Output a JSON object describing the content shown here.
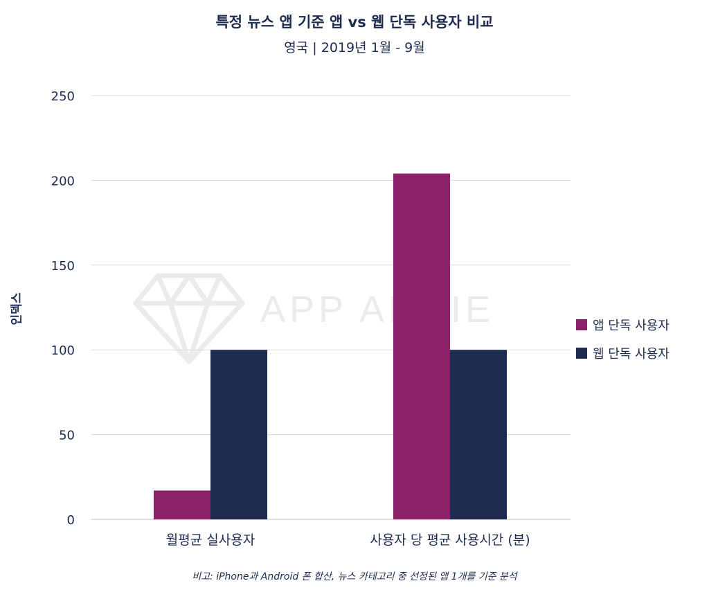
{
  "title": "특정 뉴스 앱 기준 앱 vs 웹 단독 사용자 비교",
  "subtitle": "영국 | 2019년 1월 - 9월",
  "watermark": "APP ANNIE",
  "footnote": "비고: iPhone과 Android 폰 합산, 뉴스 카테고리 중 선정된 앱 1개를 기준 분석",
  "chart_data": {
    "type": "bar",
    "title": "특정 뉴스 앱 기준 앱 vs 웹 단독 사용자 비교",
    "subtitle": "영국 | 2019년 1월 - 9월",
    "ylabel": "인덱스",
    "xlabel": "",
    "ylim": [
      0,
      250
    ],
    "yticks": [
      0,
      50,
      100,
      150,
      200,
      250
    ],
    "categories": [
      "월평균 실사용자",
      "사용자 당 평균 사용시간 (분)"
    ],
    "series": [
      {
        "name": "앱 단독 사용자",
        "color": "#8b2268",
        "values": [
          17,
          204
        ]
      },
      {
        "name": "웹 단독 사용자",
        "color": "#1c2b4f",
        "values": [
          100,
          100
        ]
      }
    ],
    "grid": true,
    "legend": "right"
  }
}
